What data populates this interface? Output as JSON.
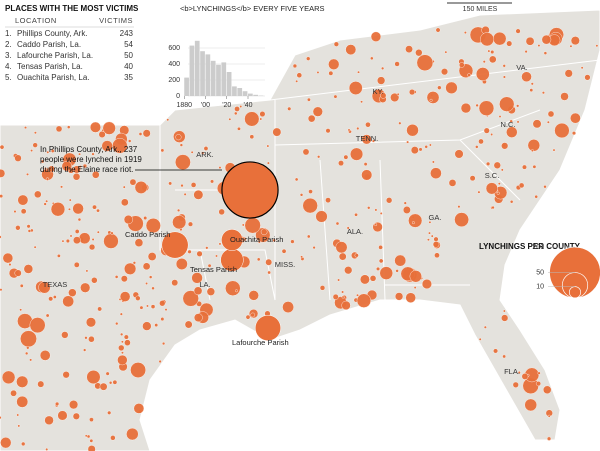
{
  "table": {
    "title": "PLACES WITH THE MOST VICTIMS",
    "columns": [
      "LOCATION",
      "VICTIMS"
    ],
    "rows": [
      [
        "1.",
        "Phillips County, Ark.",
        243
      ],
      [
        "2.",
        "Caddo Parish, La.",
        54
      ],
      [
        "3.",
        "Lafourche Parish, La.",
        50
      ],
      [
        "4.",
        "Tensas Parish, La.",
        40
      ],
      [
        "5.",
        "Ouachita Parish, La.",
        35
      ]
    ]
  },
  "histogram": {
    "title": "<b>LYNCHINGS</b> EVERY FIVE YEARS",
    "bins": [
      1880,
      1885,
      1890,
      1895,
      1900,
      1905,
      1910,
      1915,
      1920,
      1925,
      1930,
      1935,
      1940,
      1945,
      1950,
      1955
    ],
    "counts": [
      230,
      630,
      690,
      560,
      520,
      440,
      390,
      420,
      300,
      120,
      100,
      60,
      30,
      15,
      5
    ],
    "xlim": [
      1876,
      1956
    ],
    "xticks": [
      1880,
      {
        "value": 1900,
        "label": "'00"
      },
      {
        "value": 1920,
        "label": "'20"
      },
      {
        "value": 1940,
        "label": "'40"
      }
    ],
    "ylim": [
      0,
      700
    ],
    "yticks": [
      0,
      200,
      400,
      600
    ],
    "color": "#cccccc"
  },
  "scale": "150 MILES",
  "states": [
    "TEXAS",
    "ARK.",
    "TENN.",
    "KY.",
    "VA.",
    "N.C.",
    "S.C.",
    "GA.",
    "ALA.",
    "MISS.",
    "LA.",
    "FLA."
  ],
  "places": [
    "Caddo Parish",
    "Ouachita Parish",
    "Tensas Parish",
    "Lafourche Parish"
  ],
  "annotation": [
    "In Phillips County, Ark., 237",
    "people were lynched in 1919",
    "during the Elaine race riot."
  ],
  "legend": {
    "title": "LYNCHINGS PER COUNTY",
    "sizes": [
      200,
      50,
      10
    ]
  },
  "bubble_color": "#e8703a"
}
